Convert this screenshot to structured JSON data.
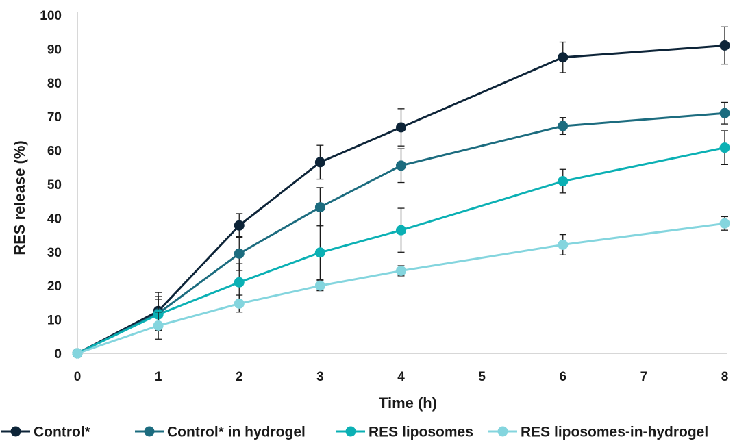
{
  "chart_data": {
    "type": "line",
    "title": "",
    "xlabel": "Time (h)",
    "ylabel": "RES release (%)",
    "xlim": [
      0,
      8
    ],
    "ylim": [
      0,
      100
    ],
    "x_ticks": [
      0,
      1,
      2,
      3,
      4,
      5,
      6,
      7,
      8
    ],
    "y_ticks": [
      0,
      10,
      20,
      30,
      40,
      50,
      60,
      70,
      80,
      90,
      100
    ],
    "grid": false,
    "legend_position": "bottom",
    "x": [
      0,
      1,
      2,
      3,
      4,
      6,
      8
    ],
    "series": [
      {
        "name": "Control*",
        "color": "#0d2438",
        "values": [
          0,
          12.5,
          37.8,
          56.5,
          66.8,
          87.5,
          91
        ],
        "errors": [
          0,
          5.5,
          3.5,
          5,
          5.5,
          4.5,
          5.5
        ]
      },
      {
        "name": "Control* in hydrogel",
        "color": "#1c6c7f",
        "values": [
          0,
          11.8,
          29.5,
          43.2,
          55.5,
          67.2,
          71
        ],
        "errors": [
          0,
          5,
          5,
          5.8,
          5,
          2.5,
          3.2
        ]
      },
      {
        "name": "RES liposomes",
        "color": "#0bb0b4",
        "values": [
          0,
          11.5,
          21,
          29.8,
          36.4,
          50.9,
          60.8
        ],
        "errors": [
          0,
          4.5,
          5.5,
          8,
          6.5,
          3.5,
          5
        ]
      },
      {
        "name": "RES liposomes-in-hydrogel",
        "color": "#84d5de",
        "values": [
          0,
          8.2,
          14.7,
          20,
          24.4,
          32.1,
          38.4
        ],
        "errors": [
          0,
          4,
          2.5,
          1.5,
          1.5,
          3,
          2
        ]
      }
    ]
  }
}
